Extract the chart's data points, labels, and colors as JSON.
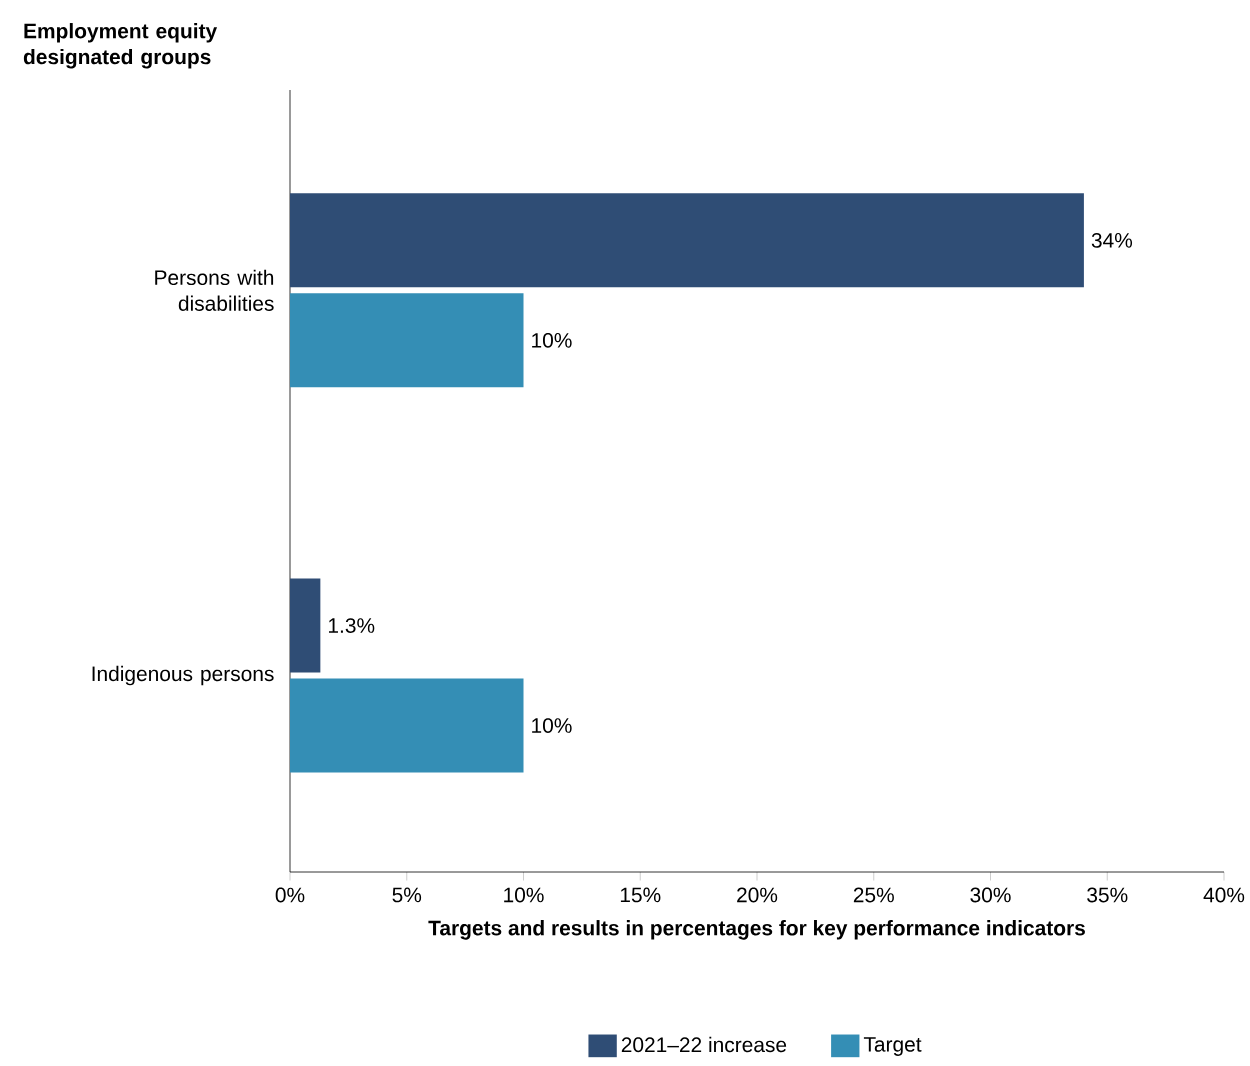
{
  "chart_data": {
    "type": "bar",
    "orientation": "horizontal",
    "ylabel": "Employment equity designated groups",
    "xlabel": "Targets and results in percentages for key performance indicators",
    "categories": [
      "Persons with disabilities",
      "Indigenous persons"
    ],
    "series": [
      {
        "name": "2021–22 increase",
        "color": "#2f4d75",
        "values": [
          34,
          1.3
        ],
        "value_labels": [
          "34%",
          "1.3%"
        ]
      },
      {
        "name": "Target",
        "color": "#348eb5",
        "values": [
          10,
          10
        ],
        "value_labels": [
          "10%",
          "10%"
        ]
      }
    ],
    "xlim": [
      0,
      40
    ],
    "xticks": [
      {
        "value": 0,
        "label": "0%"
      },
      {
        "value": 5,
        "label": "5%"
      },
      {
        "value": 10,
        "label": "10%"
      },
      {
        "value": 15,
        "label": "15%"
      },
      {
        "value": 20,
        "label": "20%"
      },
      {
        "value": 25,
        "label": "25%"
      },
      {
        "value": 30,
        "label": "30%"
      },
      {
        "value": 35,
        "label": "35%"
      },
      {
        "value": 40,
        "label": "40%"
      }
    ],
    "legend": "bottom"
  }
}
